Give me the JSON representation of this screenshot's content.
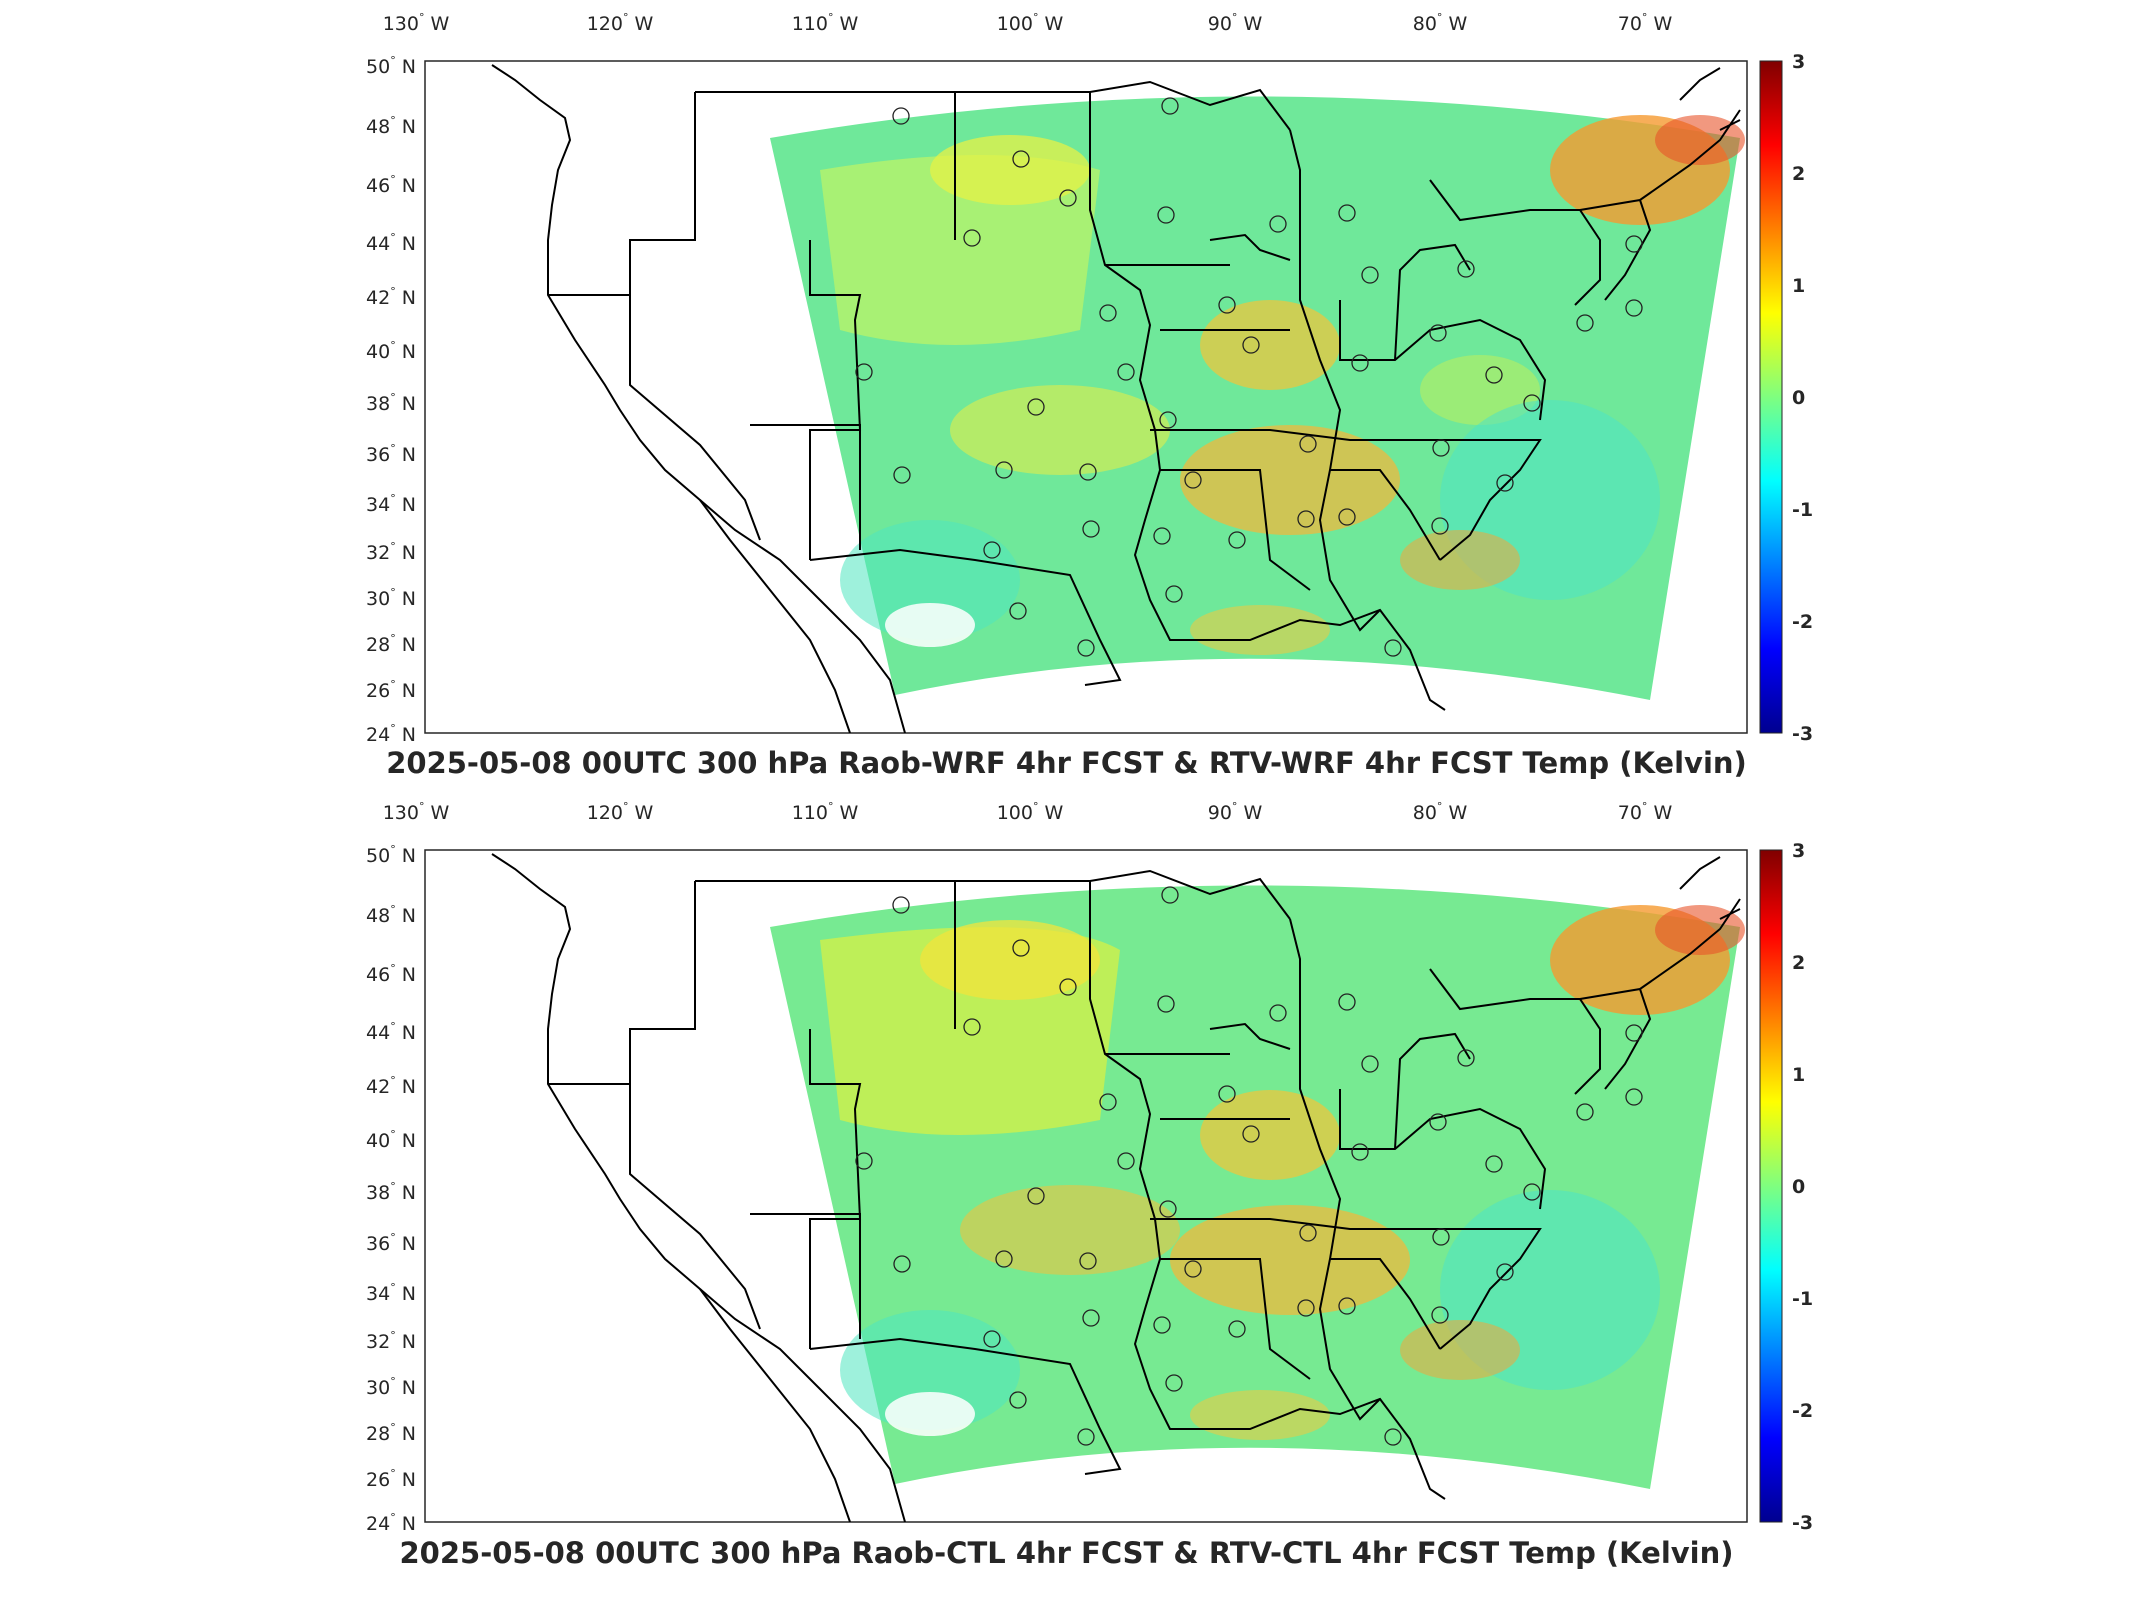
{
  "panels": [
    {
      "id": "top",
      "title": "2025-05-08 00UTC 300 hPa Raob-WRF 4hr FCST & RTV-WRF 4hr FCST Temp (Kelvin)",
      "colorbar_ticks": [
        "3",
        "2",
        "1",
        "0",
        "-1",
        "-2",
        "-3"
      ],
      "lon_labels": [
        "130",
        "120",
        "110",
        "100",
        "90",
        "80",
        "70"
      ],
      "lat_labels": [
        "50",
        "48",
        "46",
        "44",
        "42",
        "40",
        "38",
        "36",
        "34",
        "32",
        "30",
        "28",
        "26",
        "24"
      ]
    },
    {
      "id": "bottom",
      "title": "2025-05-08 00UTC 300 hPa Raob-CTL 4hr FCST & RTV-CTL 4hr FCST Temp (Kelvin)",
      "colorbar_ticks": [
        "3",
        "2",
        "1",
        "0",
        "-1",
        "-2",
        "-3"
      ],
      "lon_labels": [
        "130",
        "120",
        "110",
        "100",
        "90",
        "80",
        "70"
      ],
      "lat_labels": [
        "50",
        "48",
        "46",
        "44",
        "42",
        "40",
        "38",
        "36",
        "34",
        "32",
        "30",
        "28",
        "26",
        "24"
      ]
    }
  ],
  "labels": {
    "west": "W",
    "north": "N"
  },
  "colorbar": {
    "colormap": "jet",
    "min": -3,
    "max": 3
  },
  "colors": {
    "frame": "#262626",
    "coast": "#000000",
    "background": "#ffffff"
  }
}
